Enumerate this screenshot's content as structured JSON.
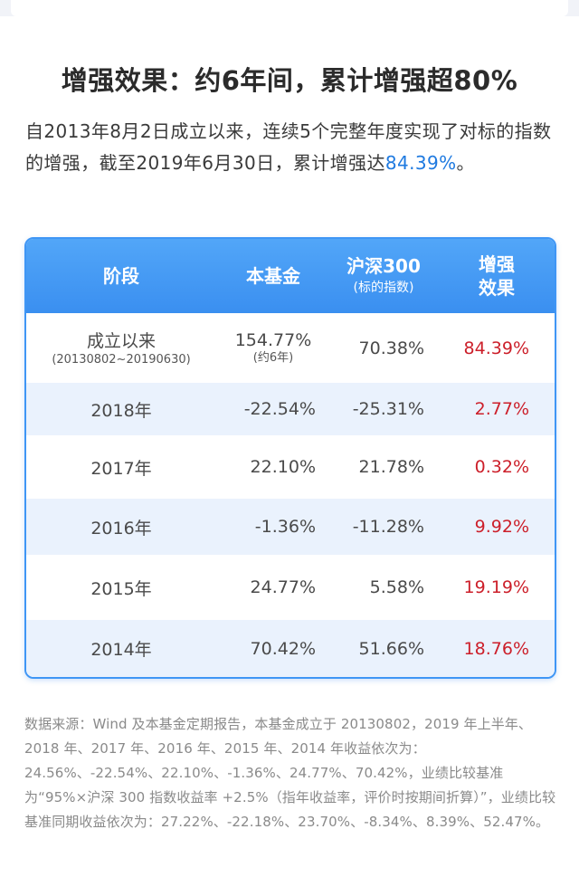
{
  "title": "增强效果：约6年间，累计增强超80%",
  "intro": {
    "text": "自2013年8月2日成立以来，连续5个完整年度实现了对标的指数的增强，截至2019年6月30日，累计增强达",
    "highlight": "84.39%",
    "end": "。"
  },
  "table": {
    "headers": {
      "period": "阶段",
      "fund": "本基金",
      "index": "沪深300",
      "index_sub": "(标的指数)",
      "enhance_1": "增强",
      "enhance_2": "效果"
    },
    "rows": [
      {
        "period": "成立以来",
        "period_sub": "(20130802~20190630)",
        "fund": "154.77%",
        "fund_sub": "(约6年)",
        "index": "70.38%",
        "enhance": "84.39%"
      },
      {
        "period": "2018年",
        "fund": "-22.54%",
        "index": "-25.31%",
        "enhance": "2.77%"
      },
      {
        "period": "2017年",
        "fund": "22.10%",
        "index": "21.78%",
        "enhance": "0.32%"
      },
      {
        "period": "2016年",
        "fund": "-1.36%",
        "index": "-11.28%",
        "enhance": "9.92%"
      },
      {
        "period": "2015年",
        "fund": "24.77%",
        "index": "5.58%",
        "enhance": "19.19%"
      },
      {
        "period": "2014年",
        "fund": "70.42%",
        "index": "51.66%",
        "enhance": "18.76%"
      }
    ]
  },
  "footnote": "数据来源：Wind 及本基金定期报告，本基金成立于 20130802，2019 年上半年、2018 年、2017 年、2016 年、2015 年、2014 年收益依次为：24.56%、-22.54%、22.10%、-1.36%、24.77%、70.42%，业绩比较基准为“95%×沪深 300 指数收益率 +2.5%（指年收益率，评价时按期间折算）”，业绩比较基准同期收益依次为：27.22%、-22.18%、23.70%、-8.34%、8.39%、52.47%。",
  "colors": {
    "accent": "#3f96f5",
    "highlight": "#1f7ae0",
    "enhance": "#cc1f2a"
  }
}
